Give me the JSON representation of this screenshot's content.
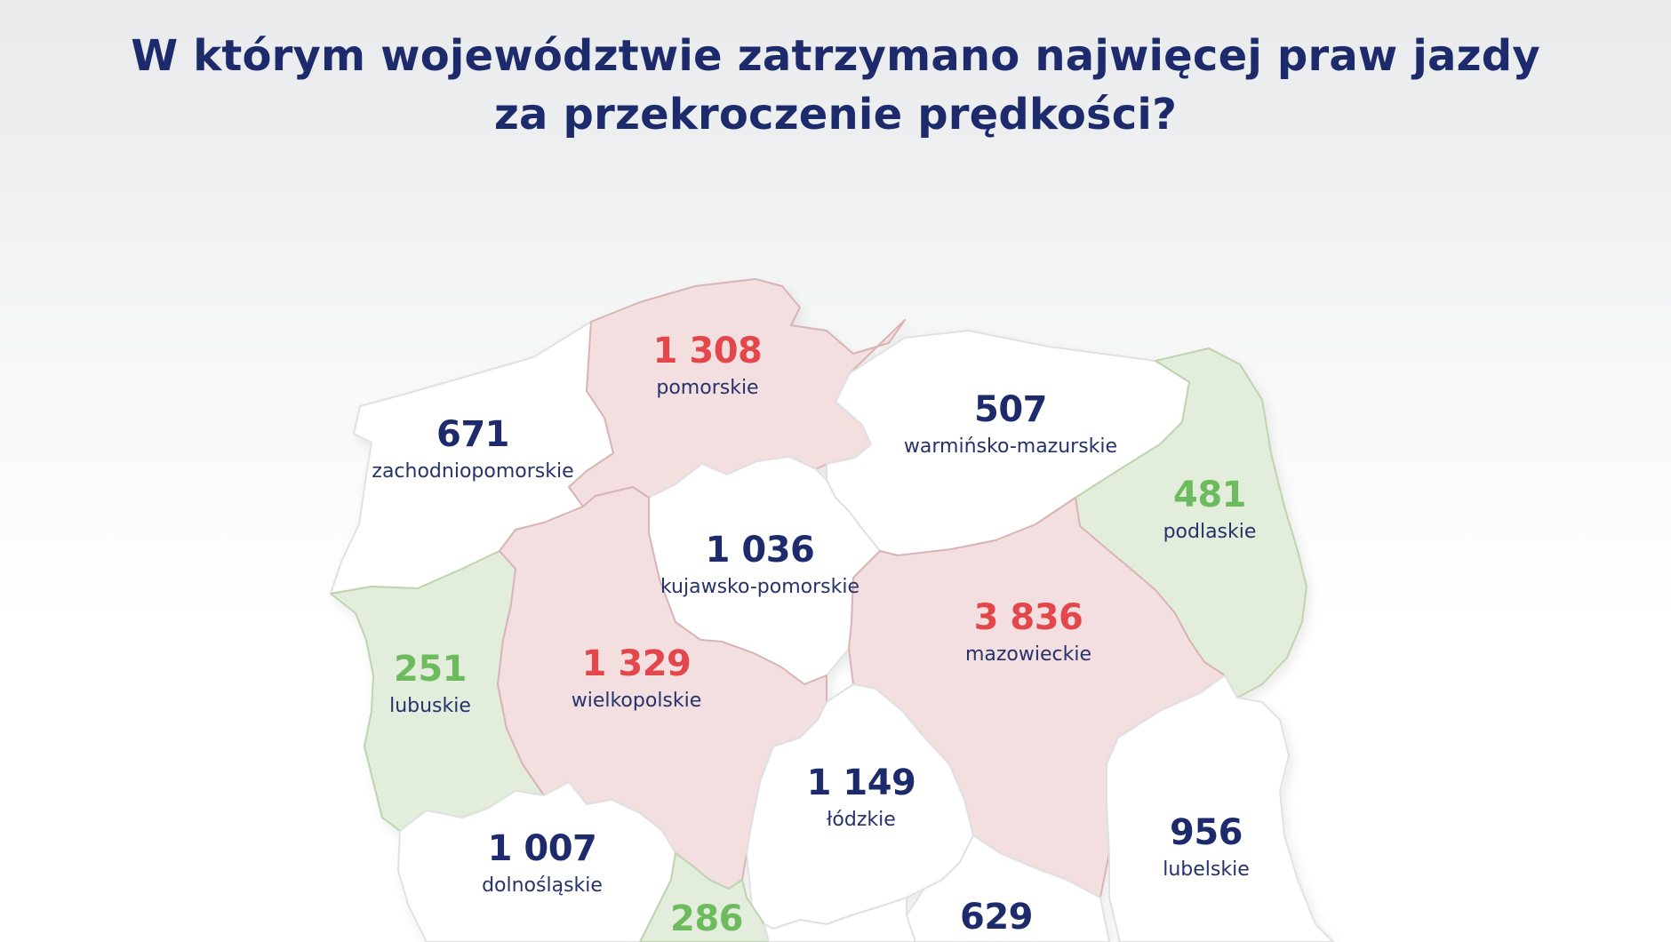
{
  "title": {
    "line1": "W którym województwie zatrzymano najwięcej praw jazdy",
    "line2": "za przekroczenie prędkości?"
  },
  "colors": {
    "high": "#e4474b",
    "mid": "#1d2a6b",
    "low": "#6dbb5e"
  },
  "regions": {
    "pomorskie": {
      "value": "1 308",
      "name": "pomorskie",
      "level": "high"
    },
    "zachodniopomorskie": {
      "value": "671",
      "name": "zachodniopomorskie",
      "level": "mid"
    },
    "warminsko_mazurskie": {
      "value": "507",
      "name": "warmińsko-mazurskie",
      "level": "mid"
    },
    "podlaskie": {
      "value": "481",
      "name": "podlaskie",
      "level": "low"
    },
    "kujawsko_pomorskie": {
      "value": "1 036",
      "name": "kujawsko-pomorskie",
      "level": "mid"
    },
    "mazowieckie": {
      "value": "3 836",
      "name": "mazowieckie",
      "level": "high"
    },
    "lubuskie": {
      "value": "251",
      "name": "lubuskie",
      "level": "low"
    },
    "wielkopolskie": {
      "value": "1 329",
      "name": "wielkopolskie",
      "level": "high"
    },
    "lodzkie": {
      "value": "1 149",
      "name": "łódzkie",
      "level": "mid"
    },
    "lubelskie": {
      "value": "956",
      "name": "lubelskie",
      "level": "mid"
    },
    "dolnoslaskie": {
      "value": "1 007",
      "name": "dolnośląskie",
      "level": "mid"
    },
    "opolskie": {
      "value": "286",
      "level": "low"
    },
    "swietokrzyskie": {
      "value": "629",
      "level": "mid"
    }
  }
}
